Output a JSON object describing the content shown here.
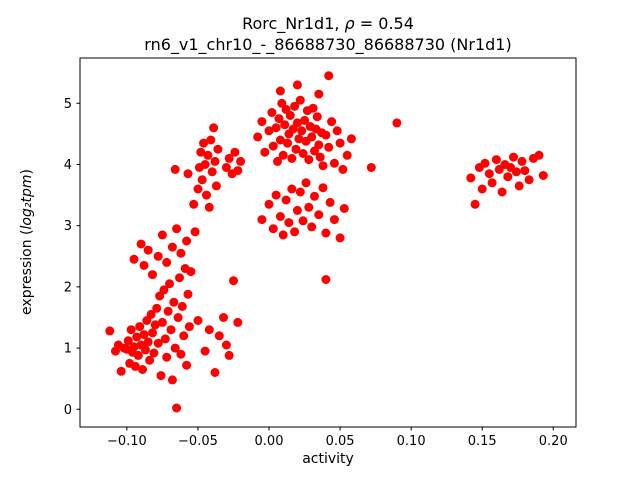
{
  "chart_data": {
    "type": "scatter",
    "title_prefix": "Rorc_Nr1d1, ",
    "title_rho": "ρ",
    "title_suffix": " = 0.54",
    "subtitle": "rn6_v1_chr10_-_86688730_86688730 (Nr1d1)",
    "xlabel": "activity",
    "ylabel_prefix": "expression (",
    "ylabel_math": "log₂tpm",
    "ylabel_suffix": ")",
    "marker_color": "#ff0000",
    "grid": false,
    "legend": false,
    "xlim": [
      -0.133,
      0.216
    ],
    "ylim": [
      -0.29,
      5.74
    ],
    "x_ticks": [
      {
        "value": -0.1,
        "label": "−0.10"
      },
      {
        "value": -0.05,
        "label": "−0.05"
      },
      {
        "value": 0.0,
        "label": "0.00"
      },
      {
        "value": 0.05,
        "label": "0.05"
      },
      {
        "value": 0.1,
        "label": "0.10"
      },
      {
        "value": 0.15,
        "label": "0.15"
      },
      {
        "value": 0.2,
        "label": "0.20"
      }
    ],
    "y_ticks": [
      {
        "value": 0,
        "label": "0"
      },
      {
        "value": 1,
        "label": "1"
      },
      {
        "value": 2,
        "label": "2"
      },
      {
        "value": 3,
        "label": "3"
      },
      {
        "value": 4,
        "label": "4"
      },
      {
        "value": 5,
        "label": "5"
      }
    ],
    "points": [
      [
        -0.112,
        1.28
      ],
      [
        -0.108,
        0.95
      ],
      [
        -0.106,
        1.05
      ],
      [
        -0.104,
        0.62
      ],
      [
        -0.102,
        1.0
      ],
      [
        -0.1,
        0.98
      ],
      [
        -0.099,
        1.12
      ],
      [
        -0.098,
        0.75
      ],
      [
        -0.097,
        1.3
      ],
      [
        -0.096,
        0.93
      ],
      [
        -0.095,
        1.02
      ],
      [
        -0.094,
        0.7
      ],
      [
        -0.093,
        1.18
      ],
      [
        -0.092,
        0.88
      ],
      [
        -0.091,
        1.35
      ],
      [
        -0.09,
        1.05
      ],
      [
        -0.089,
        0.65
      ],
      [
        -0.088,
        1.22
      ],
      [
        -0.087,
        0.97
      ],
      [
        -0.086,
        1.45
      ],
      [
        -0.085,
        1.1
      ],
      [
        -0.084,
        0.8
      ],
      [
        -0.083,
        1.55
      ],
      [
        -0.082,
        1.25
      ],
      [
        -0.081,
        0.92
      ],
      [
        -0.08,
        1.38
      ],
      [
        -0.079,
        1.65
      ],
      [
        -0.078,
        1.08
      ],
      [
        -0.077,
        1.85
      ],
      [
        -0.076,
        0.55
      ],
      [
        -0.075,
        1.42
      ],
      [
        -0.074,
        1.95
      ],
      [
        -0.073,
        1.15
      ],
      [
        -0.072,
        0.85
      ],
      [
        -0.071,
        1.6
      ],
      [
        -0.07,
        2.05
      ],
      [
        -0.069,
        1.3
      ],
      [
        -0.068,
        0.48
      ],
      [
        -0.067,
        1.75
      ],
      [
        -0.066,
        1.0
      ],
      [
        -0.065,
        0.02
      ],
      [
        -0.064,
        1.5
      ],
      [
        -0.063,
        2.15
      ],
      [
        -0.062,
        0.9
      ],
      [
        -0.061,
        1.68
      ],
      [
        -0.06,
        1.2
      ],
      [
        -0.059,
        2.3
      ],
      [
        -0.058,
        0.72
      ],
      [
        -0.057,
        1.88
      ],
      [
        -0.056,
        1.35
      ],
      [
        -0.095,
        2.45
      ],
      [
        -0.09,
        2.7
      ],
      [
        -0.088,
        2.35
      ],
      [
        -0.085,
        2.6
      ],
      [
        -0.082,
        2.2
      ],
      [
        -0.078,
        2.5
      ],
      [
        -0.075,
        2.85
      ],
      [
        -0.072,
        2.4
      ],
      [
        -0.068,
        2.65
      ],
      [
        -0.065,
        2.95
      ],
      [
        -0.062,
        2.55
      ],
      [
        -0.058,
        2.75
      ],
      [
        -0.055,
        2.25
      ],
      [
        -0.052,
        2.9
      ],
      [
        -0.066,
        3.92
      ],
      [
        -0.057,
        3.85
      ],
      [
        -0.053,
        3.35
      ],
      [
        -0.05,
        3.6
      ],
      [
        -0.049,
        3.95
      ],
      [
        -0.048,
        4.2
      ],
      [
        -0.047,
        3.75
      ],
      [
        -0.046,
        4.35
      ],
      [
        -0.045,
        4.0
      ],
      [
        -0.044,
        3.5
      ],
      [
        -0.043,
        4.15
      ],
      [
        -0.042,
        3.3
      ],
      [
        -0.041,
        4.4
      ],
      [
        -0.04,
        3.88
      ],
      [
        -0.039,
        4.6
      ],
      [
        -0.038,
        4.05
      ],
      [
        -0.037,
        3.65
      ],
      [
        -0.036,
        4.25
      ],
      [
        -0.05,
        1.45
      ],
      [
        -0.045,
        0.95
      ],
      [
        -0.042,
        1.3
      ],
      [
        -0.038,
        0.6
      ],
      [
        -0.035,
        1.2
      ],
      [
        -0.032,
        1.5
      ],
      [
        -0.03,
        1.05
      ],
      [
        -0.028,
        0.88
      ],
      [
        -0.025,
        2.1
      ],
      [
        -0.022,
        1.42
      ],
      [
        -0.03,
        3.95
      ],
      [
        -0.028,
        4.1
      ],
      [
        -0.026,
        3.85
      ],
      [
        -0.024,
        4.2
      ],
      [
        -0.022,
        3.9
      ],
      [
        -0.02,
        4.05
      ],
      [
        -0.008,
        4.45
      ],
      [
        -0.005,
        4.7
      ],
      [
        -0.003,
        4.2
      ],
      [
        0.0,
        4.55
      ],
      [
        0.002,
        4.85
      ],
      [
        0.003,
        4.3
      ],
      [
        0.005,
        4.6
      ],
      [
        0.006,
        4.05
      ],
      [
        0.007,
        4.75
      ],
      [
        0.008,
        4.4
      ],
      [
        0.009,
        5.0
      ],
      [
        0.01,
        4.15
      ],
      [
        0.011,
        4.65
      ],
      [
        0.012,
        4.9
      ],
      [
        0.013,
        4.35
      ],
      [
        0.014,
        4.5
      ],
      [
        0.015,
        4.8
      ],
      [
        0.016,
        4.1
      ],
      [
        0.017,
        4.58
      ],
      [
        0.018,
        4.95
      ],
      [
        0.019,
        4.25
      ],
      [
        0.02,
        4.68
      ],
      [
        0.021,
        4.42
      ],
      [
        0.022,
        5.05
      ],
      [
        0.023,
        4.55
      ],
      [
        0.024,
        4.18
      ],
      [
        0.025,
        4.72
      ],
      [
        0.026,
        4.38
      ],
      [
        0.027,
        4.88
      ],
      [
        0.028,
        4.08
      ],
      [
        0.029,
        4.62
      ],
      [
        0.03,
        4.45
      ],
      [
        0.031,
        4.92
      ],
      [
        0.032,
        4.22
      ],
      [
        0.033,
        4.58
      ],
      [
        0.034,
        4.78
      ],
      [
        0.035,
        4.32
      ],
      [
        0.036,
        4.12
      ],
      [
        0.037,
        4.52
      ],
      [
        0.038,
        3.98
      ],
      [
        0.04,
        4.48
      ],
      [
        0.042,
        4.28
      ],
      [
        0.044,
        4.7
      ],
      [
        0.046,
        4.02
      ],
      [
        0.048,
        4.55
      ],
      [
        0.05,
        4.35
      ],
      [
        0.052,
        3.92
      ],
      [
        0.055,
        4.15
      ],
      [
        0.058,
        4.42
      ],
      [
        0.02,
        5.3
      ],
      [
        0.035,
        5.15
      ],
      [
        0.042,
        5.45
      ],
      [
        0.008,
        5.2
      ],
      [
        -0.005,
        3.1
      ],
      [
        0.0,
        3.35
      ],
      [
        0.003,
        2.95
      ],
      [
        0.005,
        3.5
      ],
      [
        0.008,
        3.15
      ],
      [
        0.01,
        2.85
      ],
      [
        0.012,
        3.42
      ],
      [
        0.014,
        3.05
      ],
      [
        0.016,
        3.6
      ],
      [
        0.018,
        2.9
      ],
      [
        0.02,
        3.25
      ],
      [
        0.022,
        3.55
      ],
      [
        0.024,
        3.08
      ],
      [
        0.026,
        3.7
      ],
      [
        0.028,
        3.3
      ],
      [
        0.03,
        2.98
      ],
      [
        0.032,
        3.48
      ],
      [
        0.035,
        3.18
      ],
      [
        0.038,
        3.62
      ],
      [
        0.04,
        2.88
      ],
      [
        0.043,
        3.38
      ],
      [
        0.046,
        3.1
      ],
      [
        0.05,
        2.8
      ],
      [
        0.053,
        3.28
      ],
      [
        0.04,
        2.12
      ],
      [
        0.072,
        3.95
      ],
      [
        0.09,
        4.68
      ],
      [
        0.142,
        3.78
      ],
      [
        0.145,
        3.35
      ],
      [
        0.148,
        3.95
      ],
      [
        0.15,
        3.6
      ],
      [
        0.152,
        4.02
      ],
      [
        0.155,
        3.85
      ],
      [
        0.157,
        3.7
      ],
      [
        0.16,
        4.08
      ],
      [
        0.162,
        3.92
      ],
      [
        0.164,
        3.55
      ],
      [
        0.166,
        4.0
      ],
      [
        0.168,
        3.8
      ],
      [
        0.17,
        3.95
      ],
      [
        0.172,
        4.12
      ],
      [
        0.174,
        3.88
      ],
      [
        0.176,
        3.65
      ],
      [
        0.178,
        4.05
      ],
      [
        0.18,
        3.9
      ],
      [
        0.183,
        3.75
      ],
      [
        0.186,
        4.1
      ],
      [
        0.19,
        4.15
      ],
      [
        0.193,
        3.82
      ]
    ]
  }
}
